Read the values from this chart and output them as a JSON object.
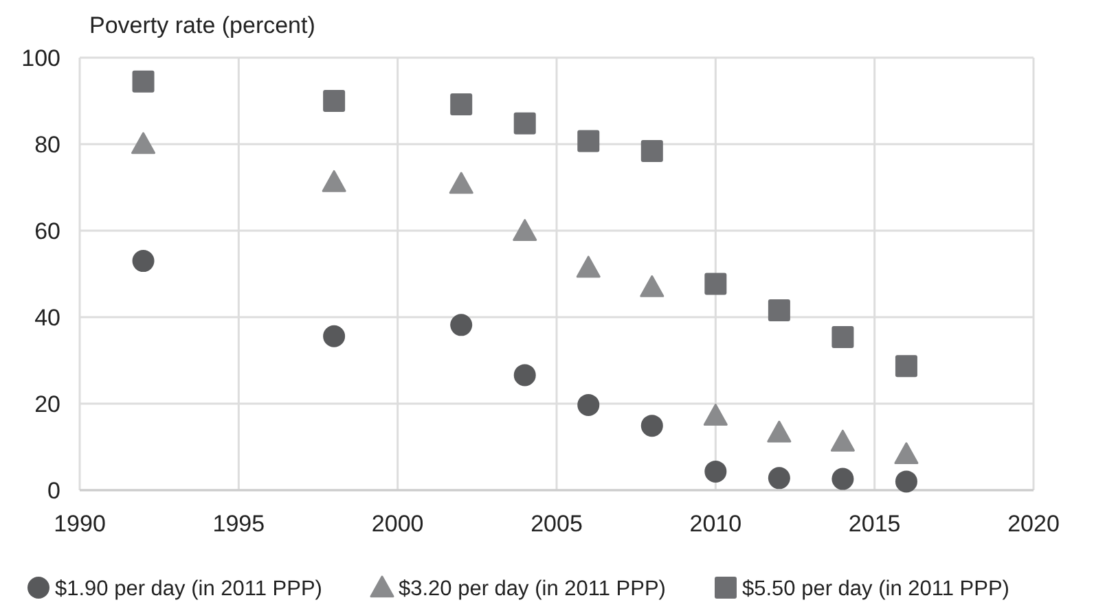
{
  "chart_data": {
    "type": "scatter",
    "ylabel": "Poverty rate (percent)",
    "x": [
      1992,
      1998,
      2002,
      2004,
      2006,
      2008,
      2010,
      2012,
      2014,
      2016
    ],
    "series": [
      {
        "name": "$1.90 per day (in 2011 PPP)",
        "color": "#58595b",
        "marker": "circle",
        "values": [
          53,
          35.6,
          38.2,
          26.6,
          19.7,
          14.9,
          4.3,
          2.8,
          2.6,
          2.0
        ]
      },
      {
        "name": "$3.20 per day (in 2011 PPP)",
        "color": "#8a8b8d",
        "marker": "triangle",
        "values": [
          80,
          71.2,
          70.8,
          59.9,
          51.4,
          46.9,
          17.2,
          13.3,
          11.2,
          8.3
        ]
      },
      {
        "name": "$5.50 per day (in 2011 PPP)",
        "color": "#6d6e71",
        "marker": "square",
        "values": [
          94.5,
          90,
          89.2,
          84.8,
          80.7,
          78.4,
          47.7,
          41.6,
          35.4,
          28.7
        ]
      }
    ],
    "xlim": [
      1990,
      2020
    ],
    "xticks": [
      1990,
      1995,
      2000,
      2005,
      2010,
      2015,
      2020
    ],
    "ylim": [
      0,
      100
    ],
    "yticks": [
      0,
      20,
      40,
      60,
      80,
      100
    ],
    "grid": true,
    "legend": "bottom"
  }
}
